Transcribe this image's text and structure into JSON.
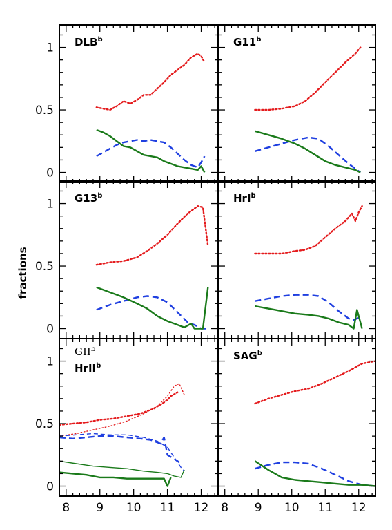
{
  "figure": {
    "ylabel": "fractions",
    "xlim": [
      7.8,
      12.5
    ],
    "ylim": [
      -0.08,
      1.18
    ],
    "xticks": [
      "8",
      "9",
      "10",
      "11",
      "12"
    ],
    "yticks": [
      {
        "v": 0,
        "label": "0"
      },
      {
        "v": 0.5,
        "label": "0.5"
      },
      {
        "v": 1,
        "label": "1"
      }
    ],
    "colors": {
      "red": "#e41a1c",
      "blue": "#1f3fe0",
      "green": "#1a7a1a",
      "axis": "#000000"
    }
  },
  "chart_data": [
    {
      "type": "line",
      "panel": "DLB",
      "label": "DLB",
      "label_sup": "b",
      "series": [
        {
          "color": "red",
          "style": "dotted",
          "x": [
            8.9,
            9.1,
            9.3,
            9.5,
            9.7,
            9.9,
            10.1,
            10.3,
            10.5,
            10.7,
            10.9,
            11.1,
            11.3,
            11.5,
            11.7,
            11.9,
            12.0,
            12.1
          ],
          "y": [
            0.52,
            0.51,
            0.5,
            0.53,
            0.57,
            0.55,
            0.58,
            0.62,
            0.62,
            0.67,
            0.72,
            0.78,
            0.82,
            0.86,
            0.92,
            0.95,
            0.93,
            0.88
          ]
        },
        {
          "color": "blue",
          "style": "dashed",
          "x": [
            8.9,
            9.1,
            9.3,
            9.5,
            9.7,
            9.9,
            10.1,
            10.3,
            10.5,
            10.7,
            10.9,
            11.1,
            11.3,
            11.5,
            11.7,
            11.9,
            12.0,
            12.1
          ],
          "y": [
            0.13,
            0.16,
            0.19,
            0.22,
            0.24,
            0.25,
            0.26,
            0.25,
            0.26,
            0.25,
            0.24,
            0.2,
            0.15,
            0.1,
            0.06,
            0.04,
            0.08,
            0.13
          ]
        },
        {
          "color": "green",
          "style": "solid",
          "x": [
            8.9,
            9.1,
            9.3,
            9.5,
            9.7,
            9.9,
            10.1,
            10.3,
            10.5,
            10.7,
            10.9,
            11.1,
            11.3,
            11.5,
            11.7,
            11.9,
            12.0,
            12.1
          ],
          "y": [
            0.34,
            0.32,
            0.29,
            0.25,
            0.21,
            0.2,
            0.17,
            0.14,
            0.13,
            0.12,
            0.09,
            0.07,
            0.05,
            0.04,
            0.03,
            0.02,
            0.05,
            0.0
          ]
        }
      ]
    },
    {
      "type": "line",
      "panel": "G11",
      "label": "G11",
      "label_sup": "b",
      "series": [
        {
          "color": "red",
          "style": "dotted",
          "x": [
            8.9,
            9.3,
            9.7,
            10.1,
            10.4,
            10.7,
            11.0,
            11.3,
            11.6,
            11.9,
            12.05
          ],
          "y": [
            0.5,
            0.5,
            0.51,
            0.53,
            0.57,
            0.64,
            0.72,
            0.8,
            0.88,
            0.95,
            1.0
          ]
        },
        {
          "color": "blue",
          "style": "dashed",
          "x": [
            8.9,
            9.3,
            9.7,
            10.1,
            10.5,
            10.8,
            11.1,
            11.4,
            11.7,
            11.9,
            12.05
          ],
          "y": [
            0.17,
            0.2,
            0.23,
            0.26,
            0.28,
            0.27,
            0.21,
            0.14,
            0.07,
            0.03,
            0.0
          ]
        },
        {
          "color": "green",
          "style": "solid",
          "x": [
            8.9,
            9.3,
            9.7,
            10.1,
            10.4,
            10.7,
            11.0,
            11.3,
            11.6,
            11.9,
            12.05
          ],
          "y": [
            0.33,
            0.3,
            0.27,
            0.23,
            0.19,
            0.14,
            0.09,
            0.06,
            0.04,
            0.02,
            0.0
          ]
        }
      ]
    },
    {
      "type": "line",
      "panel": "G13",
      "label": "G13",
      "label_sup": "b",
      "series": [
        {
          "color": "red",
          "style": "dotted",
          "x": [
            8.9,
            9.3,
            9.7,
            10.1,
            10.4,
            10.7,
            11.0,
            11.3,
            11.6,
            11.9,
            12.05,
            12.2
          ],
          "y": [
            0.51,
            0.53,
            0.54,
            0.57,
            0.62,
            0.68,
            0.75,
            0.84,
            0.92,
            0.98,
            0.97,
            0.66
          ]
        },
        {
          "color": "blue",
          "style": "dashed",
          "x": [
            8.9,
            9.3,
            9.7,
            10.1,
            10.4,
            10.7,
            11.0,
            11.3,
            11.6,
            11.8,
            12.0,
            12.15
          ],
          "y": [
            0.15,
            0.19,
            0.22,
            0.25,
            0.26,
            0.25,
            0.21,
            0.13,
            0.05,
            0.03,
            0.0,
            0.0
          ]
        },
        {
          "color": "green",
          "style": "solid",
          "x": [
            8.9,
            9.3,
            9.7,
            10.1,
            10.4,
            10.7,
            11.0,
            11.3,
            11.5,
            11.7,
            11.8,
            11.95,
            12.05,
            12.2
          ],
          "y": [
            0.33,
            0.29,
            0.25,
            0.2,
            0.16,
            0.1,
            0.06,
            0.03,
            0.01,
            0.04,
            0.0,
            0.0,
            0.0,
            0.33
          ]
        }
      ]
    },
    {
      "type": "line",
      "panel": "HrI",
      "label": "HrI",
      "label_sup": "b",
      "series": [
        {
          "color": "red",
          "style": "dotted",
          "x": [
            8.9,
            9.3,
            9.7,
            10.1,
            10.4,
            10.7,
            11.0,
            11.3,
            11.6,
            11.8,
            11.9,
            12.0,
            12.1
          ],
          "y": [
            0.6,
            0.6,
            0.6,
            0.62,
            0.63,
            0.66,
            0.73,
            0.8,
            0.86,
            0.92,
            0.86,
            0.93,
            0.98
          ]
        },
        {
          "color": "blue",
          "style": "dashed",
          "x": [
            8.9,
            9.3,
            9.7,
            10.1,
            10.5,
            10.8,
            11.1,
            11.4,
            11.7,
            11.85,
            11.95,
            12.05
          ],
          "y": [
            0.22,
            0.24,
            0.26,
            0.27,
            0.27,
            0.26,
            0.21,
            0.14,
            0.08,
            0.07,
            0.08,
            0.09
          ]
        },
        {
          "color": "green",
          "style": "solid",
          "x": [
            8.9,
            9.3,
            9.7,
            10.1,
            10.5,
            10.8,
            11.1,
            11.4,
            11.7,
            11.85,
            11.95,
            12.1
          ],
          "y": [
            0.18,
            0.16,
            0.14,
            0.12,
            0.11,
            0.1,
            0.08,
            0.05,
            0.03,
            0.0,
            0.15,
            0.0
          ]
        }
      ]
    },
    {
      "type": "line",
      "panel": "GII/HrII",
      "label": "HrII",
      "label_sup": "b",
      "label_top": "GII",
      "label_top_sup": "b",
      "series": [
        {
          "name": "HrII",
          "color": "red",
          "style": "dotted",
          "width": "thick",
          "x": [
            7.8,
            8.2,
            8.6,
            9.0,
            9.4,
            9.8,
            10.2,
            10.6,
            10.9,
            11.0,
            11.1,
            11.3
          ],
          "y": [
            0.49,
            0.5,
            0.51,
            0.53,
            0.54,
            0.56,
            0.58,
            0.62,
            0.67,
            0.69,
            0.72,
            0.75
          ]
        },
        {
          "name": "HrII",
          "color": "blue",
          "style": "dashed",
          "width": "thick",
          "x": [
            7.8,
            8.2,
            8.6,
            9.0,
            9.4,
            9.8,
            10.2,
            10.5,
            10.8,
            10.9,
            11.0,
            11.3,
            11.4
          ],
          "y": [
            0.39,
            0.38,
            0.39,
            0.4,
            0.4,
            0.39,
            0.38,
            0.37,
            0.34,
            0.39,
            0.25,
            0.2,
            0.18
          ]
        },
        {
          "name": "HrII",
          "color": "green",
          "style": "solid",
          "width": "thick",
          "x": [
            7.8,
            8.2,
            8.6,
            9.0,
            9.4,
            9.8,
            10.2,
            10.6,
            10.9,
            11.0,
            11.1
          ],
          "y": [
            0.11,
            0.1,
            0.09,
            0.07,
            0.07,
            0.06,
            0.06,
            0.06,
            0.06,
            0.0,
            0.07
          ]
        },
        {
          "name": "GII",
          "color": "red",
          "style": "dotted",
          "width": "thin",
          "x": [
            7.8,
            8.3,
            8.8,
            9.3,
            9.8,
            10.3,
            10.7,
            11.0,
            11.2,
            11.35,
            11.5
          ],
          "y": [
            0.4,
            0.42,
            0.45,
            0.48,
            0.52,
            0.58,
            0.64,
            0.72,
            0.8,
            0.82,
            0.73
          ]
        },
        {
          "name": "GII",
          "color": "blue",
          "style": "dashed",
          "width": "thin",
          "x": [
            7.8,
            8.3,
            8.8,
            9.3,
            9.8,
            10.3,
            10.7,
            11.0,
            11.2,
            11.4,
            11.5
          ],
          "y": [
            0.4,
            0.41,
            0.42,
            0.41,
            0.41,
            0.39,
            0.36,
            0.31,
            0.23,
            0.15,
            0.12
          ]
        },
        {
          "name": "GII",
          "color": "green",
          "style": "solid",
          "width": "thin",
          "x": [
            7.8,
            8.3,
            8.8,
            9.3,
            9.8,
            10.3,
            10.7,
            11.0,
            11.2,
            11.4,
            11.5
          ],
          "y": [
            0.2,
            0.18,
            0.16,
            0.15,
            0.14,
            0.12,
            0.11,
            0.1,
            0.08,
            0.07,
            0.13
          ]
        }
      ]
    },
    {
      "type": "line",
      "panel": "SAG",
      "label": "SAG",
      "label_sup": "b",
      "series": [
        {
          "color": "red",
          "style": "dotted",
          "x": [
            8.9,
            9.3,
            9.7,
            10.1,
            10.5,
            10.9,
            11.3,
            11.7,
            12.1,
            12.5
          ],
          "y": [
            0.66,
            0.7,
            0.73,
            0.76,
            0.78,
            0.82,
            0.87,
            0.92,
            0.98,
            1.0
          ]
        },
        {
          "color": "blue",
          "style": "dashed",
          "x": [
            8.9,
            9.3,
            9.7,
            10.1,
            10.5,
            10.9,
            11.3,
            11.7,
            12.1,
            12.5
          ],
          "y": [
            0.14,
            0.17,
            0.19,
            0.19,
            0.18,
            0.14,
            0.09,
            0.04,
            0.01,
            0.0
          ]
        },
        {
          "color": "green",
          "style": "solid",
          "x": [
            8.9,
            9.3,
            9.7,
            10.1,
            10.5,
            10.9,
            11.3,
            11.7,
            12.1,
            12.5
          ],
          "y": [
            0.2,
            0.13,
            0.07,
            0.05,
            0.04,
            0.03,
            0.02,
            0.01,
            0.01,
            0.0
          ]
        }
      ]
    }
  ]
}
